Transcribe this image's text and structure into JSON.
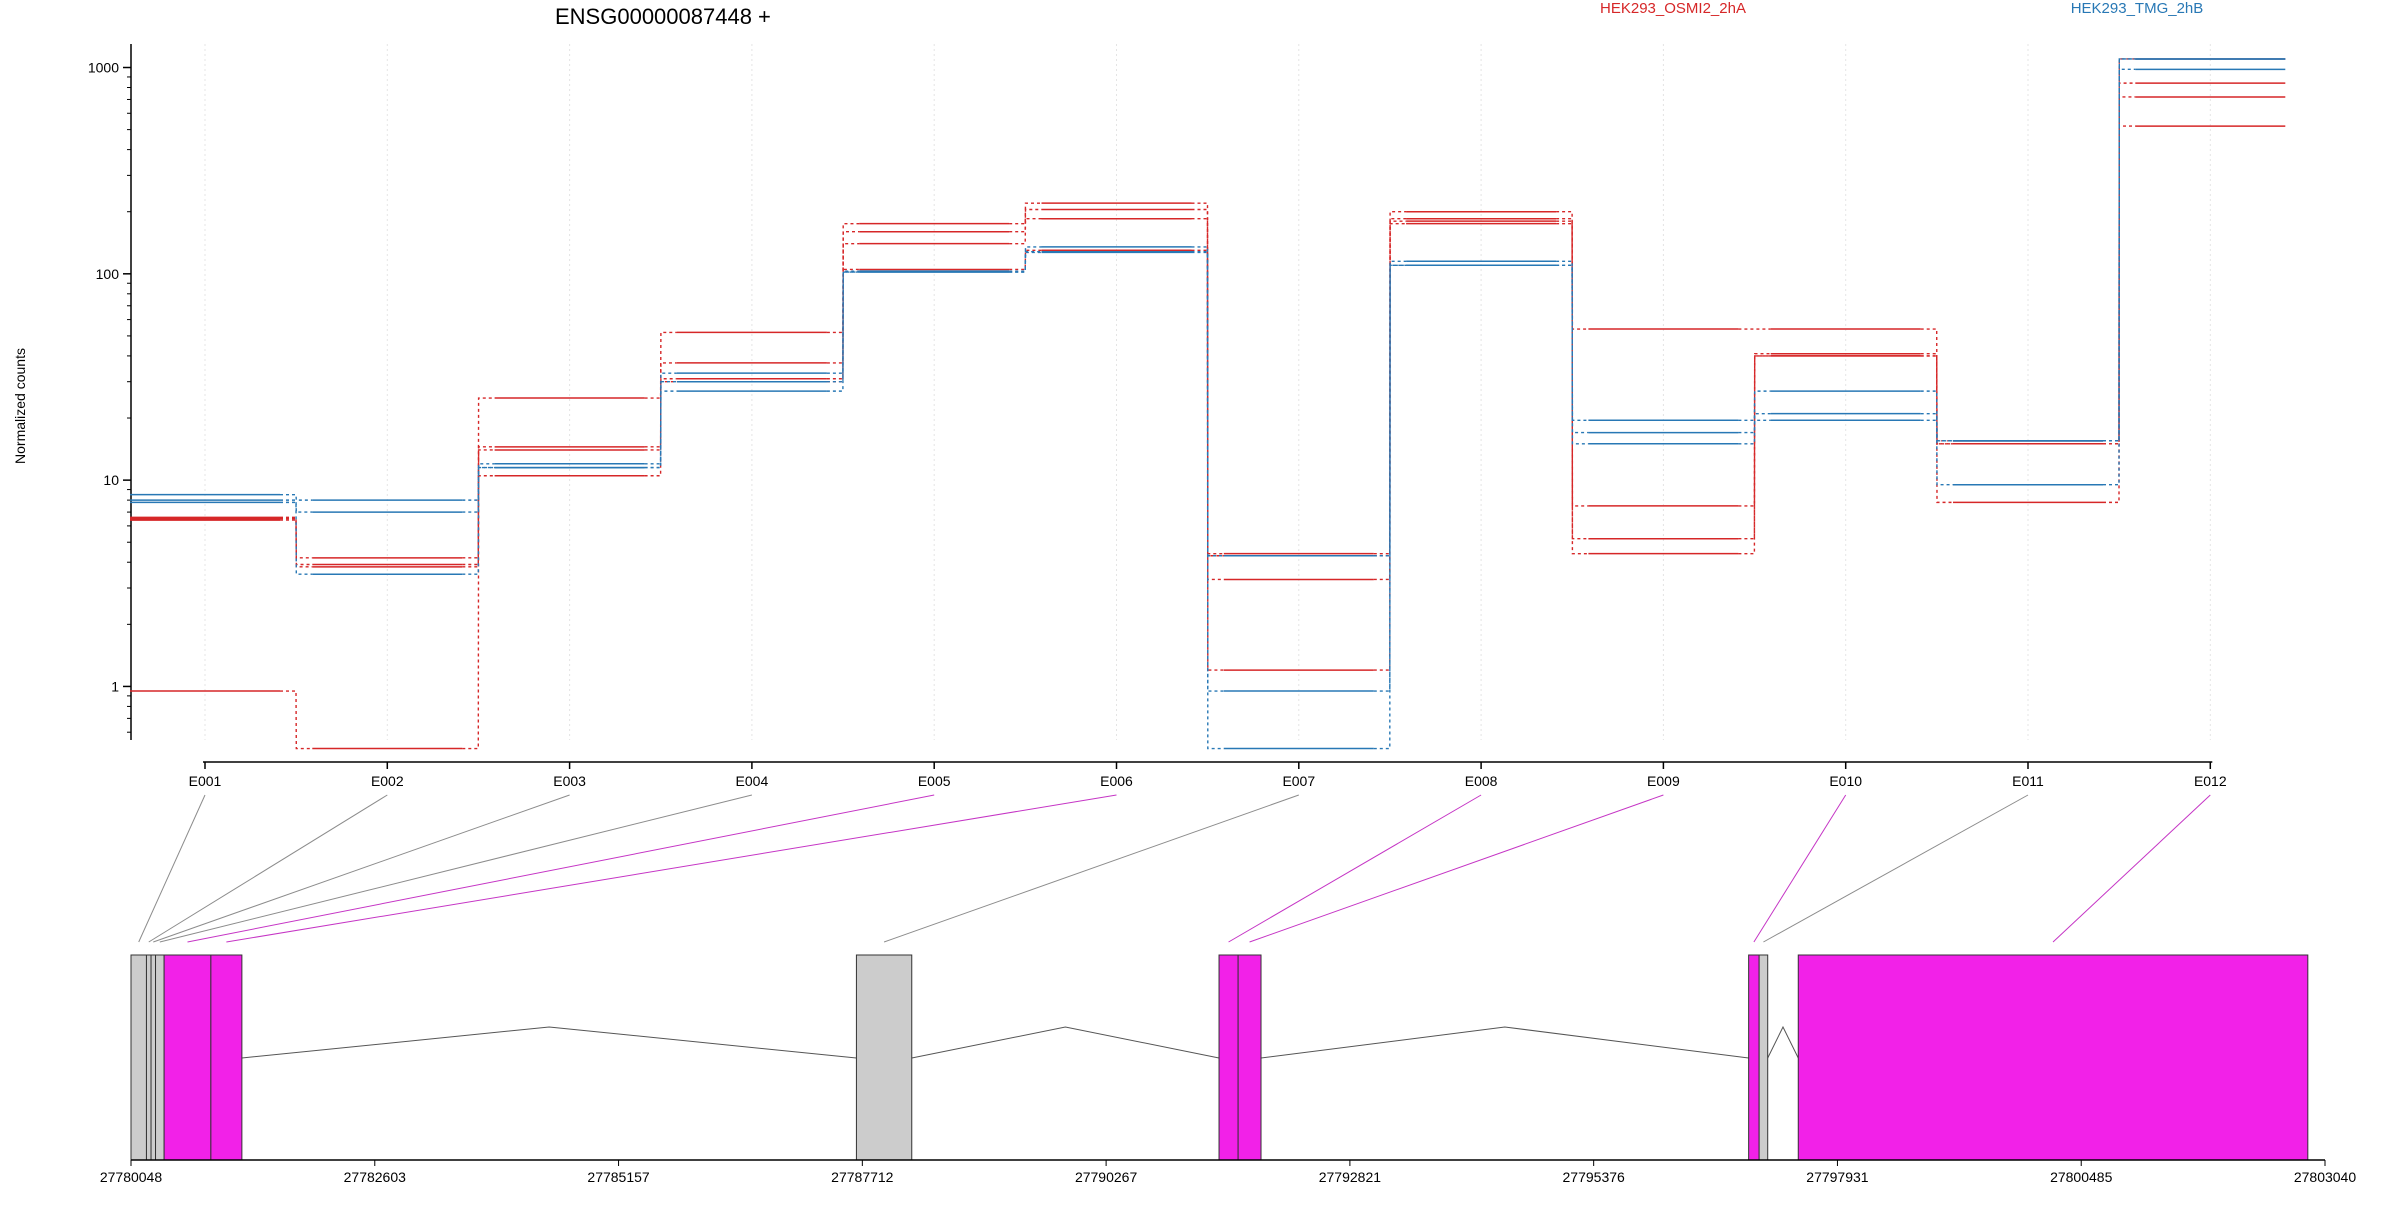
{
  "chart_data": {
    "type": "line",
    "title": "ENSG00000087448 +",
    "ylabel": "Normalized counts",
    "xlabel": "",
    "y_scale": "log",
    "ylim": [
      0.55,
      1300
    ],
    "y_ticks": [
      1,
      10,
      100,
      1000
    ],
    "y_tick_labels": [
      "1",
      "10",
      "100",
      "1000"
    ],
    "categories": [
      "E001",
      "E002",
      "E003",
      "E004",
      "E005",
      "E006",
      "E007",
      "E008",
      "E009",
      "E010",
      "E011",
      "E012"
    ],
    "legend": [
      {
        "label": "HEK293_OSMI2_2hA",
        "color": "#d62728"
      },
      {
        "label": "HEK293_TMG_2hB",
        "color": "#2878b5"
      }
    ],
    "series": [
      {
        "group": "HEK293_OSMI2_2hA",
        "color": "#d62728",
        "values": [
          6.6,
          4.2,
          25,
          52,
          175,
          220,
          4.4,
          200,
          54,
          54,
          15.5,
          840
        ]
      },
      {
        "group": "HEK293_OSMI2_2hA",
        "color": "#d62728",
        "values": [
          6.5,
          3.9,
          14.5,
          37,
          160,
          205,
          3.3,
          185,
          7.5,
          41,
          15,
          720
        ]
      },
      {
        "group": "HEK293_OSMI2_2hA",
        "color": "#d62728",
        "values": [
          0.95,
          0.5,
          10.5,
          30,
          140,
          185,
          1.2,
          175,
          5.2,
          40,
          7.8,
          520
        ]
      },
      {
        "group": "HEK293_OSMI2_2hA",
        "color": "#d62728",
        "values": [
          6.4,
          3.8,
          14,
          31,
          105,
          130,
          4.3,
          180,
          4.4,
          40,
          15,
          1100
        ]
      },
      {
        "group": "HEK293_TMG_2hB",
        "color": "#2878b5",
        "values": [
          8.5,
          8.0,
          12,
          33,
          103,
          135,
          4.3,
          115,
          19.5,
          27,
          15.5,
          1100
        ]
      },
      {
        "group": "HEK293_TMG_2hB",
        "color": "#2878b5",
        "values": [
          8.0,
          7.0,
          11.5,
          30,
          102,
          128,
          0.95,
          110,
          17,
          21,
          15.5,
          980
        ]
      },
      {
        "group": "HEK293_TMG_2hB",
        "color": "#2878b5",
        "values": [
          7.8,
          3.5,
          11.5,
          27,
          102,
          127,
          0.5,
          110,
          15,
          19.5,
          9.5,
          1100
        ]
      }
    ],
    "gene_model": {
      "axis_ticks": [
        "27780048",
        "27782603",
        "27785157",
        "27787712",
        "27790267",
        "27792821",
        "27795376",
        "27797931",
        "27800485",
        "27803040"
      ],
      "start": 27780048,
      "end": 27803040,
      "exons": [
        {
          "id": "E001",
          "start": 27780048,
          "end": 27780210,
          "state": "not-significant",
          "color": "#cccccc"
        },
        {
          "id": "E002",
          "start": 27780210,
          "end": 27780258,
          "state": "not-significant",
          "color": "#cccccc"
        },
        {
          "id": "E003",
          "start": 27780258,
          "end": 27780305,
          "state": "not-significant",
          "color": "#cccccc"
        },
        {
          "id": "E004",
          "start": 27780305,
          "end": 27780395,
          "state": "not-significant",
          "color": "#cccccc"
        },
        {
          "id": "E005",
          "start": 27780395,
          "end": 27780885,
          "state": "significant",
          "color": "#f221e8"
        },
        {
          "id": "E006",
          "start": 27780885,
          "end": 27781210,
          "state": "significant",
          "color": "#f221e8"
        },
        {
          "id": "E007",
          "start": 27787650,
          "end": 27788230,
          "state": "not-significant",
          "color": "#cccccc"
        },
        {
          "id": "E008",
          "start": 27791450,
          "end": 27791650,
          "state": "significant",
          "color": "#f221e8"
        },
        {
          "id": "E009",
          "start": 27791650,
          "end": 27791890,
          "state": "significant",
          "color": "#f221e8"
        },
        {
          "id": "E010",
          "start": 27797000,
          "end": 27797110,
          "state": "significant",
          "color": "#f221e8"
        },
        {
          "id": "E011",
          "start": 27797110,
          "end": 27797200,
          "state": "not-significant",
          "color": "#cccccc"
        },
        {
          "id": "E012",
          "start": 27797520,
          "end": 27802860,
          "state": "significant",
          "color": "#f221e8"
        }
      ]
    }
  }
}
